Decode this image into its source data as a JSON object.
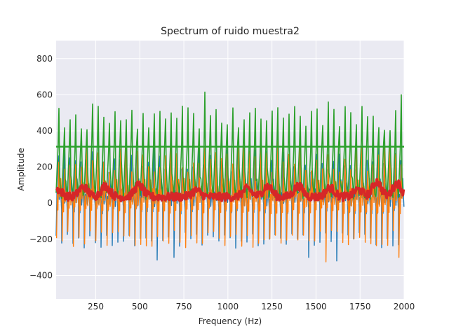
{
  "chart_data": {
    "type": "line",
    "title": "Spectrum of ruido muestra2",
    "xlabel": "Frequency (Hz)",
    "ylabel": "Amplitude",
    "xlim": [
      25,
      2000
    ],
    "ylim": [
      -530,
      900
    ],
    "x_ticks": [
      250,
      500,
      750,
      1000,
      1250,
      1500,
      1750,
      2000
    ],
    "x_tick_labels": [
      "250",
      "500",
      "750",
      "1000",
      "1250",
      "1500",
      "1750",
      "2000"
    ],
    "y_ticks": [
      -400,
      -200,
      0,
      200,
      400,
      600,
      800
    ],
    "y_tick_labels": [
      "−400",
      "−200",
      "0",
      "200",
      "400",
      "600",
      "800"
    ],
    "grid": true,
    "background": "#EAEAF2",
    "series": [
      {
        "color": "#1f77b4",
        "style": "signed sawtooth bursts",
        "peak_count": 62,
        "approx_range": [
          -320,
          330
        ],
        "notable_troughs": [
          {
            "x": 45,
            "y": -280
          },
          {
            "x": 610,
            "y": -315
          },
          {
            "x": 690,
            "y": -300
          },
          {
            "x": 1450,
            "y": -300
          },
          {
            "x": 1625,
            "y": -320
          }
        ]
      },
      {
        "color": "#ff7f0e",
        "style": "signed sawtooth bursts",
        "peak_count": 62,
        "approx_range": [
          -330,
          340
        ],
        "notable_peaks": [
          {
            "x": 1290,
            "y": 340
          }
        ],
        "notable_troughs": [
          {
            "x": 1560,
            "y": -325
          },
          {
            "x": 1965,
            "y": -300
          }
        ]
      },
      {
        "color": "#2ca02c",
        "style": "magnitude spikes",
        "peak_count": 62,
        "approx_range": [
          0,
          645
        ],
        "mean_line": 313,
        "notable_peaks": [
          {
            "x": 40,
            "y": 525
          },
          {
            "x": 725,
            "y": 640
          },
          {
            "x": 870,
            "y": 615
          },
          {
            "x": 1560,
            "y": 560
          },
          {
            "x": 1985,
            "y": 600
          }
        ]
      },
      {
        "color": "#d62728",
        "style": "thick noisy envelope",
        "baseline": 35,
        "approx_range": [
          0,
          140
        ],
        "bumps": [
          {
            "x": 35,
            "y": 75
          },
          {
            "x": 180,
            "y": 90
          },
          {
            "x": 305,
            "y": 95
          },
          {
            "x": 495,
            "y": 100
          },
          {
            "x": 820,
            "y": 70
          },
          {
            "x": 1110,
            "y": 80
          },
          {
            "x": 1225,
            "y": 95
          },
          {
            "x": 1400,
            "y": 95
          },
          {
            "x": 1580,
            "y": 85
          },
          {
            "x": 1740,
            "y": 75
          },
          {
            "x": 1845,
            "y": 120
          },
          {
            "x": 1960,
            "y": 110
          }
        ]
      }
    ]
  }
}
